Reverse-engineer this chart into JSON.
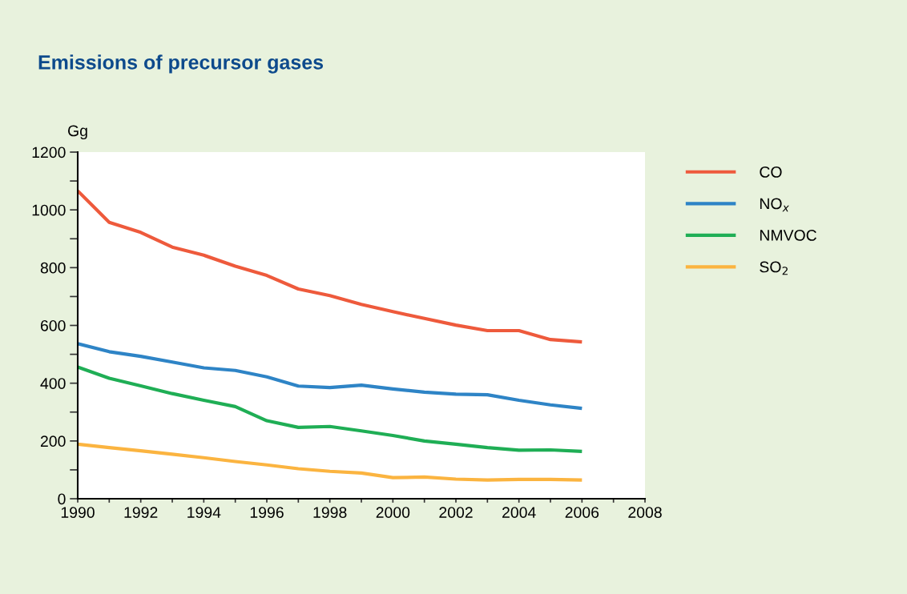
{
  "chart_data": {
    "type": "line",
    "title": "Emissions of precursor gases",
    "ylabel": "Gg",
    "x": [
      1990,
      1991,
      1992,
      1993,
      1994,
      1995,
      1996,
      1997,
      1998,
      1999,
      2000,
      2001,
      2002,
      2003,
      2004,
      2005,
      2006
    ],
    "series": [
      {
        "name": "CO",
        "color": "#ee5a3c",
        "values": [
          1066,
          957,
          922,
          871,
          843,
          805,
          773,
          726,
          703,
          673,
          648,
          624,
          601,
          582,
          582,
          551,
          543
        ]
      },
      {
        "name": "NO$_{x}$",
        "color": "#2e84c6",
        "values": [
          537,
          509,
          493,
          473,
          453,
          444,
          422,
          390,
          385,
          393,
          380,
          369,
          362,
          360,
          341,
          325,
          313
        ]
      },
      {
        "name": "NMVOC",
        "color": "#1fae55",
        "values": [
          456,
          417,
          391,
          364,
          341,
          319,
          270,
          247,
          250,
          235,
          219,
          200,
          189,
          177,
          168,
          169,
          164
        ]
      },
      {
        "name": "SO$_{2}$",
        "color": "#fbb440",
        "values": [
          189,
          177,
          166,
          154,
          142,
          129,
          117,
          104,
          95,
          89,
          73,
          75,
          68,
          65,
          67,
          67,
          65
        ]
      }
    ],
    "xlim": [
      1990,
      2008
    ],
    "xticks": [
      1990,
      {
        "value": 1991,
        "label": null
      },
      1992,
      {
        "value": 1993,
        "label": null
      },
      1994,
      {
        "value": 1995,
        "label": null
      },
      1996,
      {
        "value": 1997,
        "label": null
      },
      1998,
      {
        "value": 1999,
        "label": null
      },
      2000,
      {
        "value": 2001,
        "label": null
      },
      2002,
      {
        "value": 2003,
        "label": null
      },
      2004,
      {
        "value": 2005,
        "label": null
      },
      2006,
      {
        "value": 2007,
        "label": null
      },
      2008
    ],
    "ylim": [
      0,
      1200
    ],
    "yticks": [
      0,
      {
        "value": 100,
        "label": null
      },
      200,
      {
        "value": 300,
        "label": null
      },
      400,
      {
        "value": 500,
        "label": null
      },
      600,
      {
        "value": 700,
        "label": null
      },
      800,
      {
        "value": 900,
        "label": null
      },
      1000,
      {
        "value": 1100,
        "label": null
      },
      1200
    ],
    "grid": false,
    "legend": "right",
    "marker": "none",
    "line_style": "solid"
  }
}
